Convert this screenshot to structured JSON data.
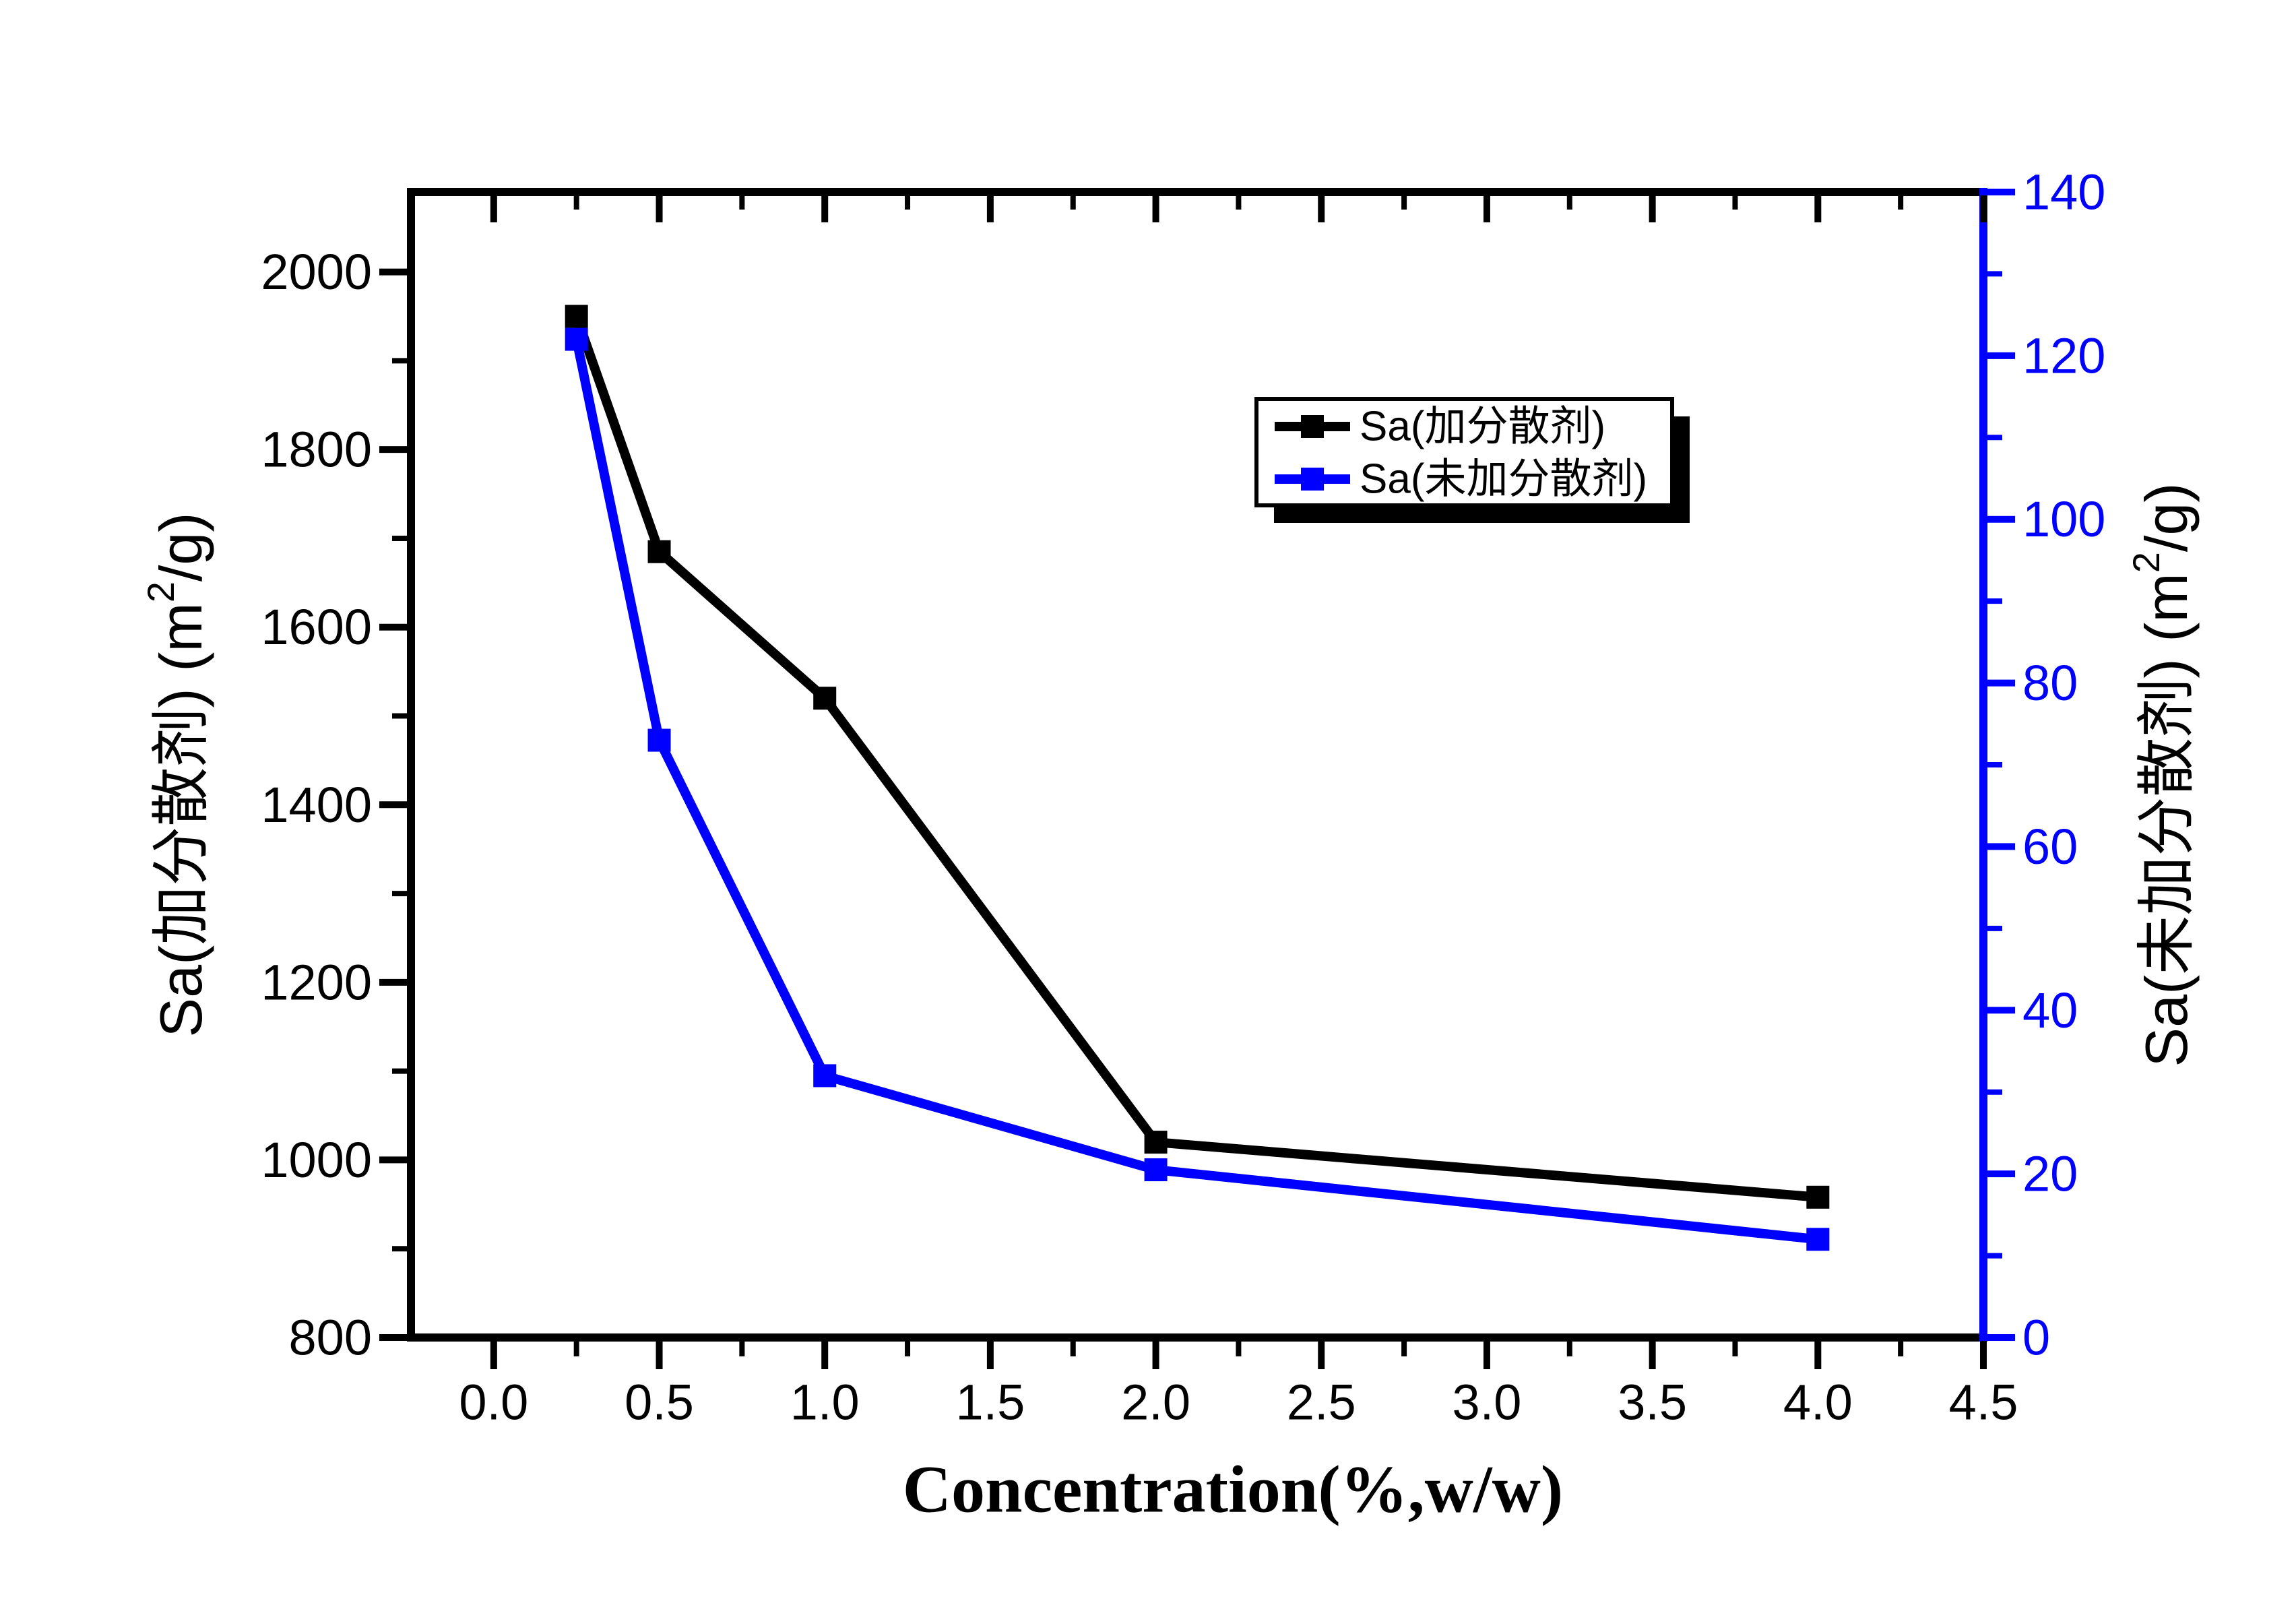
{
  "figure": {
    "background": "#ffffff",
    "x_axis": {
      "title": "Concentration(%,w/w)",
      "tick_values": [
        0.0,
        0.5,
        1.0,
        1.5,
        2.0,
        2.5,
        3.0,
        3.5,
        4.0,
        4.5
      ],
      "tick_labels": [
        "0.0",
        "0.5",
        "1.0",
        "1.5",
        "2.0",
        "2.5",
        "3.0",
        "3.5",
        "4.0",
        "4.5"
      ],
      "minor_tick_values": [
        0.25,
        0.75,
        1.25,
        1.75,
        2.25,
        2.75,
        3.25,
        3.75,
        4.25
      ],
      "color": "#000000"
    },
    "left_axis": {
      "title_prefix": "Sa(加分散剂) (m",
      "title_sup": "2",
      "title_suffix": "/g)",
      "tick_values": [
        800,
        1000,
        1200,
        1400,
        1600,
        1800,
        2000
      ],
      "tick_labels": [
        "800",
        "1000",
        "1200",
        "1400",
        "1600",
        "1800",
        "2000"
      ],
      "minor_tick_values": [
        900,
        1100,
        1300,
        1500,
        1700,
        1900
      ],
      "color": "#000000"
    },
    "right_axis": {
      "title_prefix": "Sa(未加分散剂) (m",
      "title_sup": "2",
      "title_suffix": "/g)",
      "tick_values": [
        0,
        20,
        40,
        60,
        80,
        100,
        120,
        140
      ],
      "tick_labels": [
        "0",
        "20",
        "40",
        "60",
        "80",
        "100",
        "120",
        "140"
      ],
      "minor_tick_values": [
        10,
        30,
        50,
        70,
        90,
        110,
        130
      ],
      "color": "#0000ff"
    },
    "legend": {
      "items": [
        {
          "label": "Sa(加分散剂)",
          "color": "#000000"
        },
        {
          "label": "Sa(未加分散剂)",
          "color": "#0000ff"
        }
      ]
    }
  },
  "chart_data": {
    "type": "line",
    "x": [
      0.25,
      0.5,
      1.0,
      2.0,
      4.0
    ],
    "series": [
      {
        "name": "Sa(加分散剂)",
        "axis": "left",
        "color": "#000000",
        "marker": "square",
        "values": [
          1950,
          1685,
          1520,
          1020,
          958
        ]
      },
      {
        "name": "Sa(未加分散剂)",
        "axis": "right",
        "color": "#0000ff",
        "marker": "square",
        "values": [
          122,
          73,
          32,
          20.5,
          12
        ]
      }
    ],
    "title": "",
    "xlabel": "Concentration(%,w/w)",
    "left_ylabel": "Sa(加分散剂) (m2/g)",
    "right_ylabel": "Sa(未加分散剂) (m2/g)",
    "xlim": [
      -0.25,
      4.5
    ],
    "left_ylim": [
      800,
      2090
    ],
    "right_ylim": [
      0,
      140
    ],
    "grid": false,
    "legend_position": "upper-right-inside"
  }
}
